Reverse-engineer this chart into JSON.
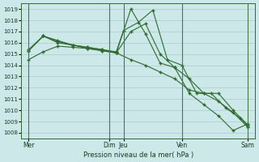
{
  "xlabel": "Pression niveau de la mer( hPa )",
  "bg_color": "#cce8e8",
  "grid_color": "#aacccc",
  "line_color": "#2d6b2d",
  "vline_color": "#4a7a4a",
  "ylim": [
    1007.5,
    1019.5
  ],
  "yticks": [
    1008,
    1009,
    1010,
    1011,
    1012,
    1013,
    1014,
    1015,
    1016,
    1017,
    1018,
    1019
  ],
  "xlim": [
    0,
    96
  ],
  "xtick_positions": [
    3,
    36,
    42,
    66,
    93
  ],
  "xtick_labels": [
    "Mer",
    "Dim",
    "Jeu",
    "Ven",
    "Sam"
  ],
  "vline_positions": [
    3,
    36,
    42,
    66,
    93
  ],
  "series1": {
    "x": [
      3,
      9,
      15,
      21,
      27,
      33,
      39,
      45,
      51,
      57,
      63,
      69,
      75,
      81,
      87,
      93
    ],
    "y": [
      1014.5,
      1015.2,
      1015.7,
      1015.6,
      1015.5,
      1015.3,
      1015.1,
      1014.5,
      1014.0,
      1013.4,
      1012.8,
      1011.8,
      1011.5,
      1010.8,
      1009.8,
      1008.5
    ]
  },
  "series2": {
    "x": [
      3,
      9,
      15,
      21,
      27,
      33,
      39,
      45,
      51,
      57,
      63,
      69,
      75,
      81,
      87,
      93
    ],
    "y": [
      1015.3,
      1016.6,
      1016.0,
      1015.8,
      1015.6,
      1015.4,
      1015.1,
      1019.0,
      1016.8,
      1014.2,
      1013.8,
      1012.8,
      1011.5,
      1011.5,
      1010.0,
      1008.7
    ]
  },
  "series3": {
    "x": [
      3,
      9,
      15,
      21,
      27,
      33,
      39,
      42,
      48,
      54,
      60,
      66,
      72,
      78,
      84,
      90,
      93
    ],
    "y": [
      1015.3,
      1016.6,
      1016.1,
      1015.8,
      1015.6,
      1015.4,
      1015.2,
      1017.1,
      1017.8,
      1018.9,
      1014.5,
      1014.0,
      1011.5,
      1011.5,
      1010.2,
      1009.3,
      1008.6
    ]
  },
  "series4": {
    "x": [
      3,
      9,
      15,
      21,
      27,
      33,
      39,
      45,
      51,
      57,
      63,
      69,
      75,
      81,
      87,
      93
    ],
    "y": [
      1015.4,
      1016.6,
      1016.2,
      1015.8,
      1015.5,
      1015.3,
      1015.1,
      1017.0,
      1017.7,
      1015.0,
      1013.8,
      1011.5,
      1010.5,
      1009.5,
      1008.2,
      1008.8
    ]
  }
}
